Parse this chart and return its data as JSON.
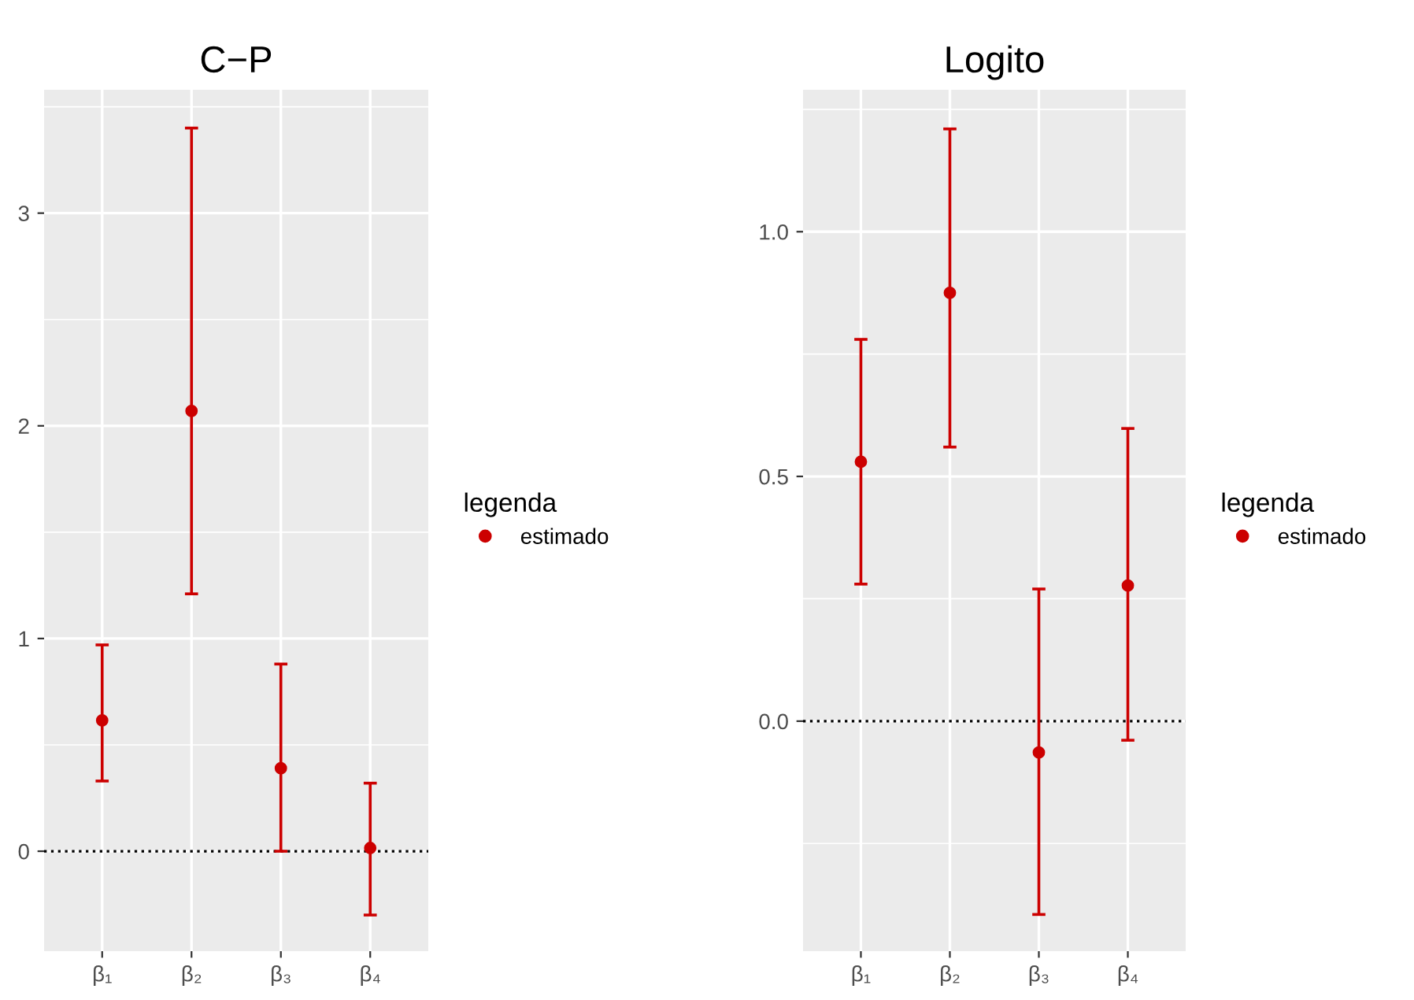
{
  "chart_data": [
    {
      "type": "scatter",
      "title": "C−P",
      "categories": [
        "β₁",
        "β₂",
        "β₃",
        "β₄"
      ],
      "series": [
        {
          "name": "estimado",
          "color": "#cc0000",
          "values": [
            0.615,
            2.07,
            0.39,
            0.015
          ],
          "errors": [
            [
              0.33,
              0.97
            ],
            [
              1.21,
              3.4
            ],
            [
              0.0,
              0.88
            ],
            [
              -0.3,
              0.32
            ]
          ]
        }
      ],
      "ylim": [
        -0.47,
        3.58
      ],
      "yticks": [
        0,
        1,
        2,
        3
      ],
      "legend_title": "legenda",
      "legend": "right",
      "grid": true,
      "marker": "circle",
      "ref_lines": [
        {
          "axis": "y",
          "value": 0,
          "label": null,
          "color": "#000000",
          "line_style": "dotted"
        }
      ]
    },
    {
      "type": "scatter",
      "title": "Logito",
      "categories": [
        "β₁",
        "β₂",
        "β₃",
        "β₄"
      ],
      "series": [
        {
          "name": "estimado",
          "color": "#cc0000",
          "values": [
            0.53,
            0.875,
            -0.064,
            0.277
          ],
          "errors": [
            [
              0.28,
              0.78
            ],
            [
              0.56,
              1.21
            ],
            [
              -0.395,
              0.27
            ],
            [
              -0.039,
              0.598
            ]
          ]
        }
      ],
      "ylim": [
        -0.47,
        1.29
      ],
      "yticks": [
        {
          "value": 0,
          "label": "0.0"
        },
        {
          "value": 0.5,
          "label": "0.5"
        },
        {
          "value": 1.0,
          "label": "1.0"
        }
      ],
      "legend_title": "legenda",
      "legend": "right",
      "grid": true,
      "marker": "circle",
      "ref_lines": [
        {
          "axis": "y",
          "value": 0,
          "label": null,
          "color": "#000000",
          "line_style": "dotted"
        }
      ]
    }
  ]
}
